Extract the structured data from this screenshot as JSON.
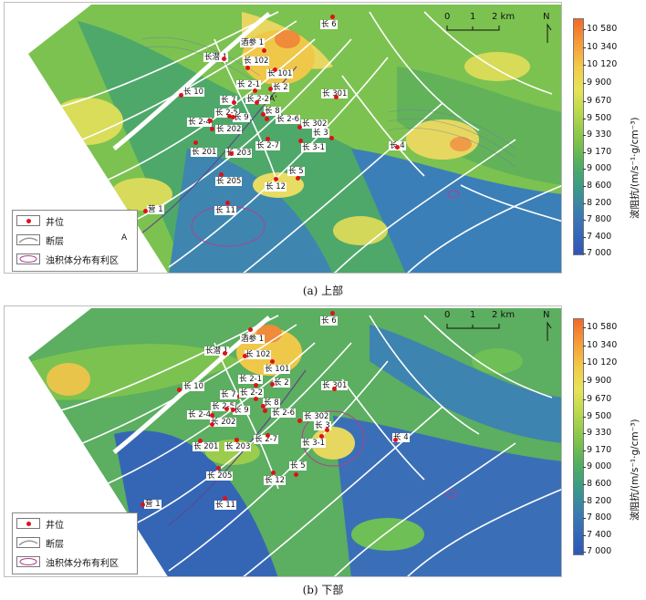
{
  "panels": [
    {
      "caption": "(a) 上部",
      "legend": {
        "well": "井位",
        "fault": "断层",
        "turbidite": "浊积体分布有利区"
      },
      "scale": {
        "ticks": [
          "0",
          "1",
          "2 km"
        ]
      },
      "north": "N",
      "colorbar": {
        "unit": "波阻抗/(m/s⁻¹·g/cm⁻³)",
        "ticks": [
          "10 580",
          "10 340",
          "10 120",
          "9 900",
          "9 670",
          "9 500",
          "9 330",
          "9 170",
          "9 000",
          "8 600",
          "8 200",
          "7 800",
          "7 400",
          "7 000"
        ]
      },
      "section_labels": [
        "A",
        "A'"
      ],
      "wells": [
        "酒参 1",
        "长 6",
        "长 102",
        "长 101",
        "长 2-1",
        "长 2",
        "长 10",
        "长 7",
        "长 2-2",
        "长 301",
        "长 2-5",
        "长 8",
        "长 2-4",
        "长 9",
        "长 2-6",
        "长 302",
        "长 202",
        "长 3",
        "长 201",
        "长 2-7",
        "长 3-1",
        "长 203",
        "长 4",
        "长 5",
        "长 205",
        "长 12",
        "营 1",
        "长 11",
        "长潜 1"
      ]
    },
    {
      "caption": "(b) 下部",
      "legend": {
        "well": "井位",
        "fault": "断层",
        "turbidite": "浊积体分布有利区"
      },
      "scale": {
        "ticks": [
          "0",
          "1",
          "2 km"
        ]
      },
      "north": "N",
      "colorbar": {
        "unit": "波阻抗/(m/s⁻¹·g/cm⁻³)",
        "ticks": [
          "10 580",
          "10 340",
          "10 120",
          "9 900",
          "9 670",
          "9 500",
          "9 330",
          "9 170",
          "9 000",
          "8 600",
          "8 200",
          "7 800",
          "7 400",
          "7 000"
        ]
      },
      "wells": [
        "酒参 1",
        "长 6",
        "长 102",
        "长 101",
        "长 2-1",
        "长 2",
        "长 10",
        "长 7",
        "长 2-2",
        "长 301",
        "长 2-5",
        "长 8",
        "长 2-4",
        "长 9",
        "长 2-6",
        "长 302",
        "长 202",
        "长 3",
        "长 201",
        "长 2-7",
        "长 3-1",
        "长 203",
        "长 4",
        "长 5",
        "长 205",
        "长 12",
        "营 1",
        "长 11",
        "长潜 1"
      ]
    }
  ]
}
